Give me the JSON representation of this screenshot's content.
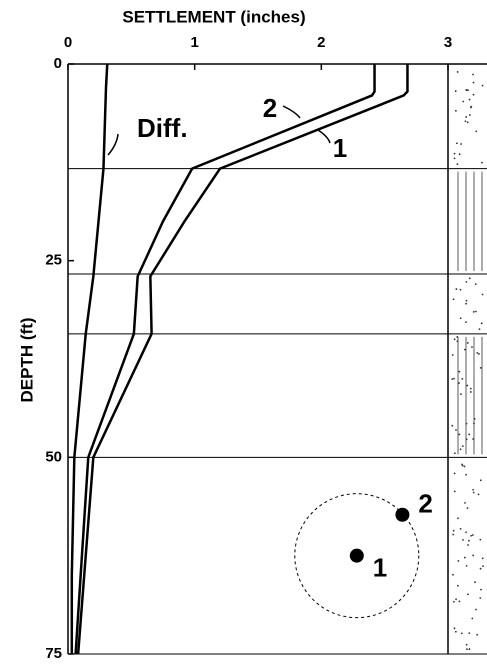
{
  "chart_data": {
    "type": "line",
    "x_title": "SETTLEMENT  (inches)",
    "y_title": "DEPTH  (ft)",
    "xlim": [
      0,
      3
    ],
    "xticks": [
      0,
      1,
      2,
      3
    ],
    "ylim": [
      0,
      75
    ],
    "yticks": [
      0,
      25,
      50,
      75
    ],
    "y_inverted": true,
    "color": "#000000",
    "layer_boundaries": [
      13.3,
      26.7,
      34.3,
      50
    ],
    "series": [
      {
        "name": "1",
        "x": [
          2.68,
          2.68,
          2.65,
          1.2,
          0.92,
          0.65,
          0.66,
          0.2,
          0.08
        ],
        "values": [
          0,
          3.5,
          4,
          13.3,
          20,
          27,
          34.3,
          50,
          75
        ]
      },
      {
        "name": "2",
        "x": [
          2.42,
          2.42,
          2.4,
          0.98,
          0.75,
          0.55,
          0.52,
          0.16,
          0.06
        ],
        "values": [
          0,
          3.5,
          4,
          13.3,
          20,
          27,
          34.3,
          50,
          75
        ]
      },
      {
        "name": "Diff.",
        "x": [
          0.31,
          0.3,
          0.28,
          0.2,
          0.14,
          0.05,
          0.03,
          0.03
        ],
        "values": [
          0,
          3,
          13.3,
          27,
          34.3,
          50,
          65,
          75
        ]
      }
    ],
    "markers": {
      "labels": [
        "2",
        "1"
      ],
      "x": [
        2.64,
        2.28
      ],
      "values": [
        57.3,
        62.5
      ]
    }
  }
}
